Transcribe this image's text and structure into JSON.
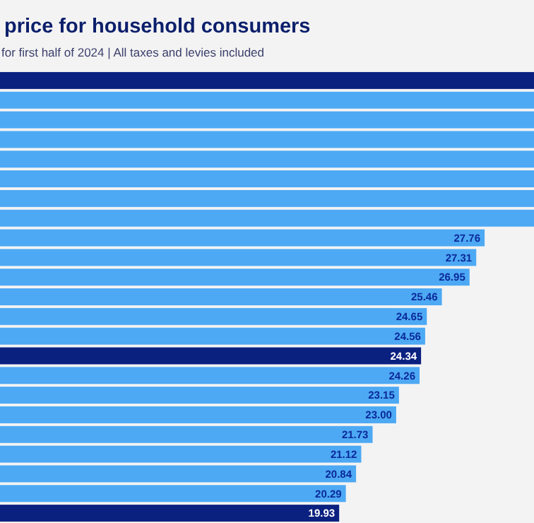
{
  "chart_data": {
    "type": "bar",
    "orientation": "horizontal",
    "title": "price for household consumers",
    "subtitle": "for first half of 2024 | All taxes and levies included",
    "categories": [
      null,
      null,
      null,
      null,
      null,
      null,
      null,
      null,
      null,
      null,
      null,
      null,
      null,
      null,
      null,
      null,
      null,
      null,
      null,
      null,
      null,
      null,
      null
    ],
    "values": [
      30.42,
      30.42,
      30.42,
      30.42,
      30.42,
      30.42,
      30.42,
      30.42,
      27.76,
      27.31,
      26.95,
      25.46,
      24.65,
      24.56,
      24.34,
      24.26,
      23.15,
      23.0,
      21.73,
      21.12,
      20.84,
      20.29,
      19.93
    ],
    "value_labels": [
      null,
      null,
      null,
      null,
      null,
      null,
      null,
      null,
      "27.76",
      "27.31",
      "26.95",
      "25.46",
      "24.65",
      "24.56",
      "24.34",
      "24.26",
      "23.15",
      "23.00",
      "21.73",
      "21.12",
      "20.84",
      "20.29",
      "19.93"
    ],
    "colors": [
      "#0b2180",
      "#4da9f4",
      "#4da9f4",
      "#4da9f4",
      "#4da9f4",
      "#4da9f4",
      "#4da9f4",
      "#4da9f4",
      "#4da9f4",
      "#4da9f4",
      "#4da9f4",
      "#4da9f4",
      "#4da9f4",
      "#4da9f4",
      "#0b2180",
      "#4da9f4",
      "#4da9f4",
      "#4da9f4",
      "#4da9f4",
      "#4da9f4",
      "#4da9f4",
      "#4da9f4",
      "#0b2180"
    ],
    "xlim": [
      1.67,
      30.42
    ]
  }
}
